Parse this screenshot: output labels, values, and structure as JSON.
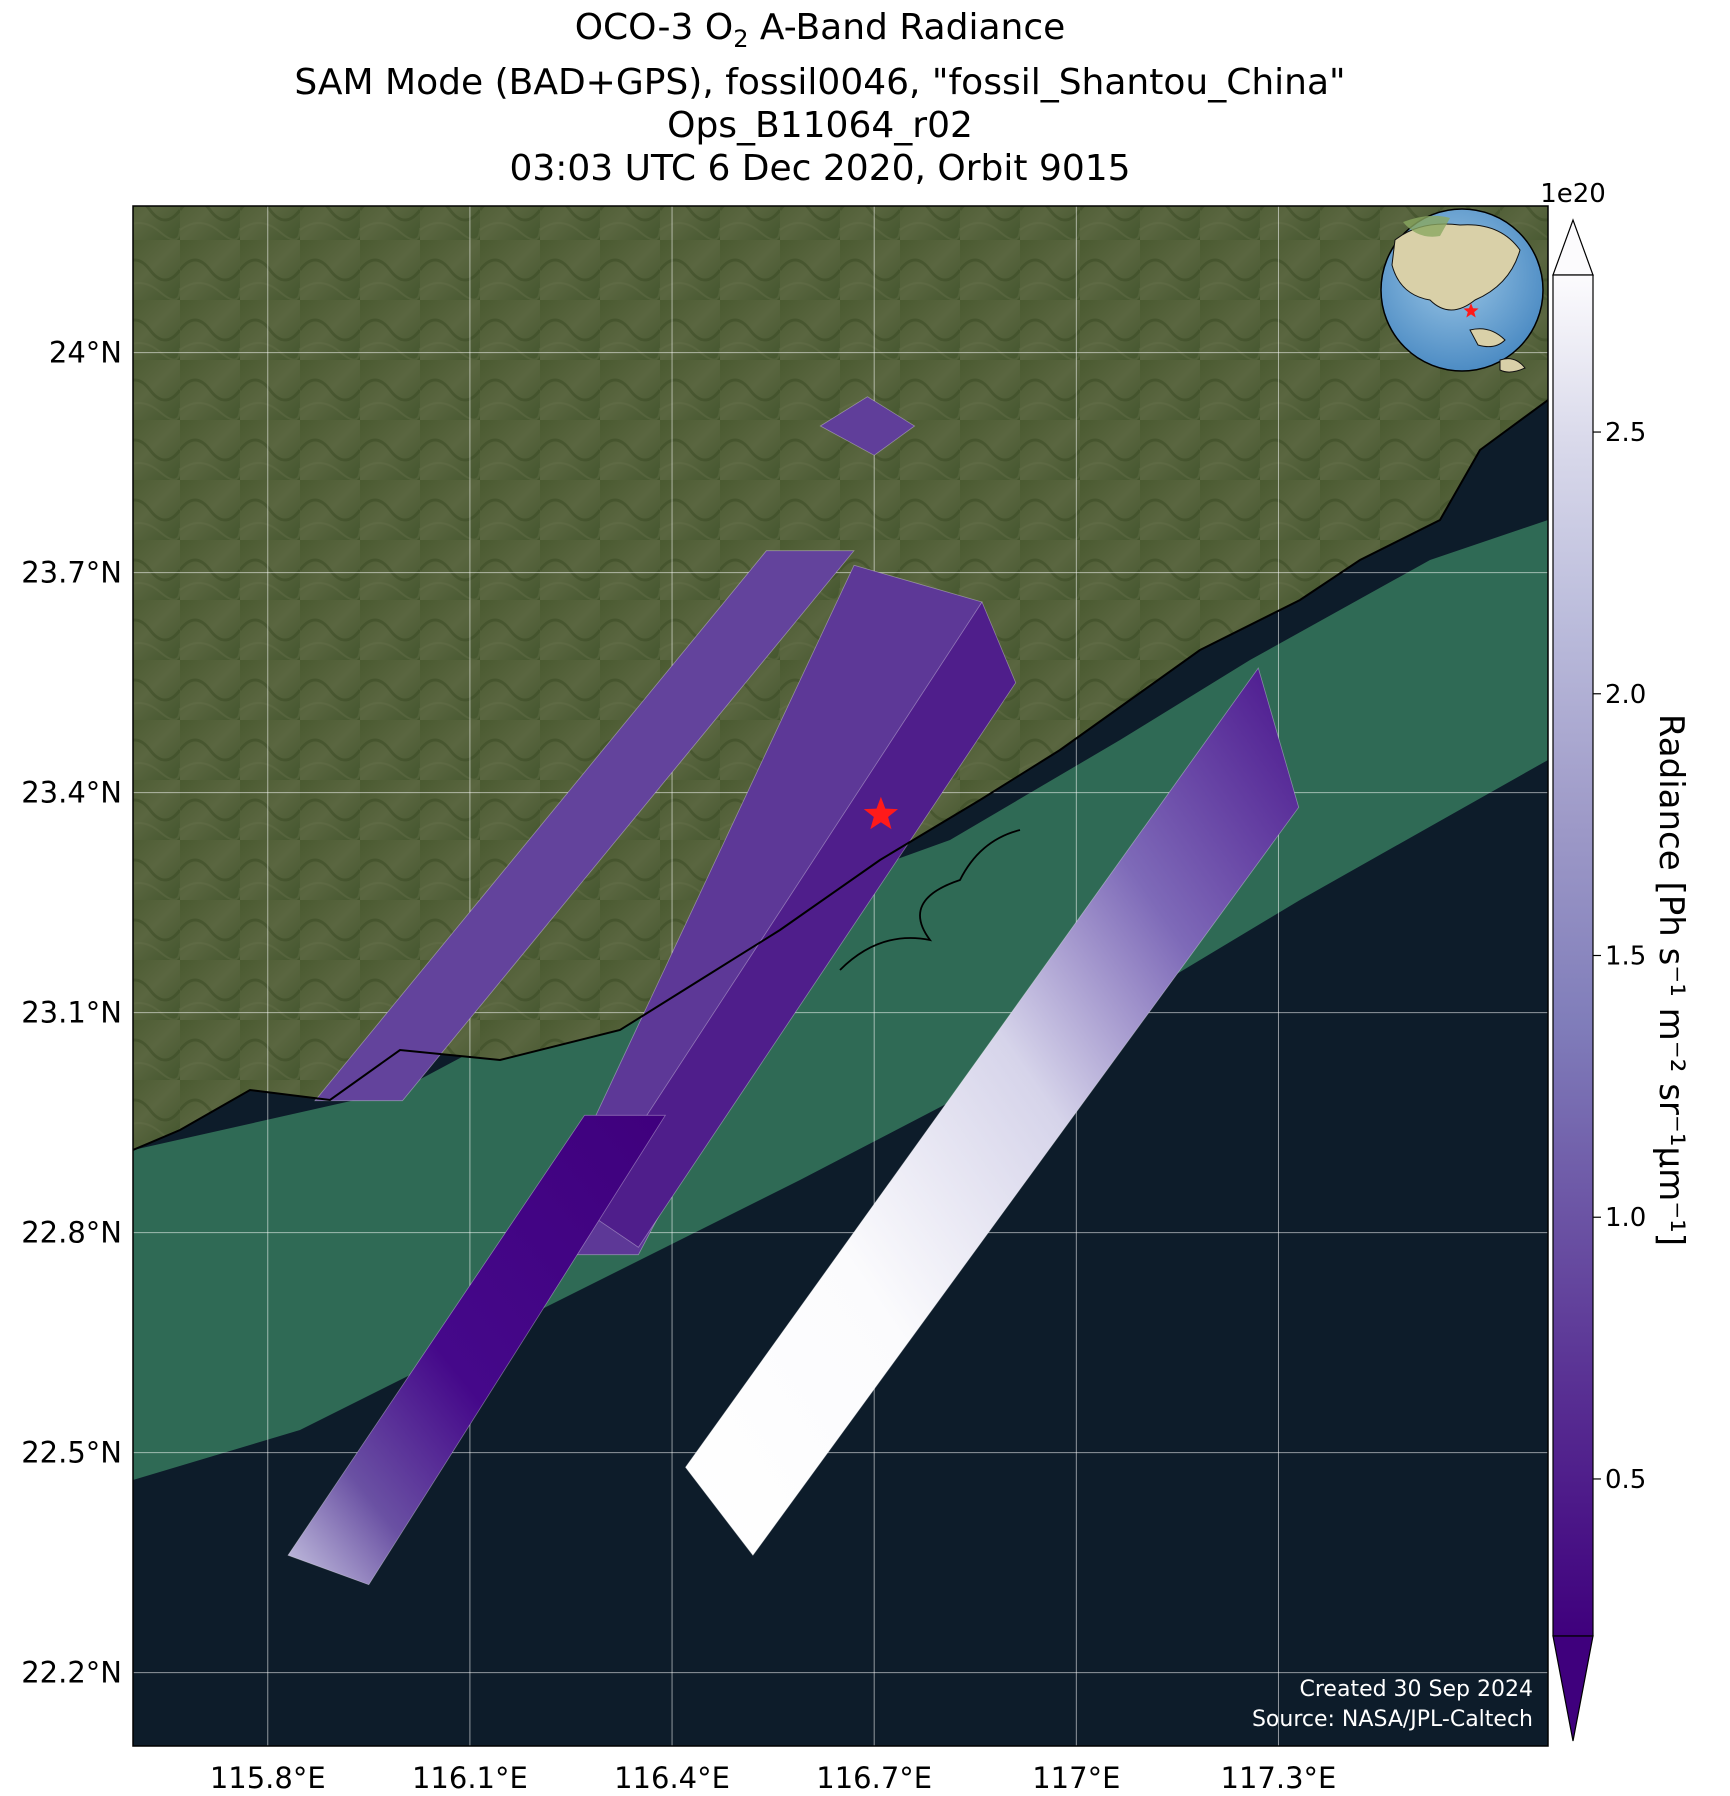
{
  "title": {
    "line1_pre": "OCO-3 O",
    "line1_sub": "2",
    "line1_post": " A-Band Radiance",
    "line2": "SAM Mode (BAD+GPS), fossil0046, \"fossil_Shantou_China\"",
    "line3": "Ops_B11064_r02",
    "line4": "03:03 UTC 6 Dec 2020, Orbit 9015"
  },
  "map": {
    "lon_range": [
      115.6,
      117.7
    ],
    "lat_range": [
      22.1,
      24.2
    ],
    "lon_ticks": [
      {
        "value": 115.8,
        "label": "115.8°E"
      },
      {
        "value": 116.1,
        "label": "116.1°E"
      },
      {
        "value": 116.4,
        "label": "116.4°E"
      },
      {
        "value": 116.7,
        "label": "116.7°E"
      },
      {
        "value": 117.0,
        "label": "117°E"
      },
      {
        "value": 117.3,
        "label": "117.3°E"
      }
    ],
    "lat_ticks": [
      {
        "value": 24.0,
        "label": "24°N"
      },
      {
        "value": 23.7,
        "label": "23.7°N"
      },
      {
        "value": 23.4,
        "label": "23.4°N"
      },
      {
        "value": 23.1,
        "label": "23.1°N"
      },
      {
        "value": 22.8,
        "label": "22.8°N"
      },
      {
        "value": 22.5,
        "label": "22.5°N"
      },
      {
        "value": 22.2,
        "label": "22.2°N"
      }
    ],
    "target": {
      "lon": 116.71,
      "lat": 23.37,
      "color": "#ff1a1a"
    },
    "land_color": "#4c5a30",
    "ocean_color": "#0d1c2a",
    "coast_water_color": "#2f6a55",
    "gridlines": true
  },
  "colorbar": {
    "label": "Radiance [Ph s⁻¹ m⁻² sr⁻¹µm⁻¹]",
    "exponent": "1e20",
    "range": [
      0.2,
      2.8
    ],
    "ticks": [
      {
        "value": 0.5,
        "label": "0.5"
      },
      {
        "value": 1.0,
        "label": "1.0"
      },
      {
        "value": 1.5,
        "label": "1.5"
      },
      {
        "value": 2.0,
        "label": "2.0"
      },
      {
        "value": 2.5,
        "label": "2.5"
      }
    ],
    "colormap": "Purples_r",
    "extend": "both"
  },
  "swaths": [
    {
      "name": "small-north-patch",
      "corners": [
        [
          116.69,
          23.94
        ],
        [
          116.76,
          23.9
        ],
        [
          116.7,
          23.86
        ],
        [
          116.62,
          23.9
        ]
      ],
      "value": 0.8
    },
    {
      "name": "land-swath-west",
      "corners": [
        [
          116.54,
          23.73
        ],
        [
          116.67,
          23.73
        ],
        [
          116.0,
          22.98
        ],
        [
          115.87,
          22.98
        ]
      ],
      "value": 0.85
    },
    {
      "name": "land-swath-mid",
      "corners": [
        [
          116.67,
          23.71
        ],
        [
          116.86,
          23.66
        ],
        [
          116.35,
          22.77
        ],
        [
          116.19,
          22.77
        ]
      ],
      "value": 0.75
    },
    {
      "name": "land-swath-east",
      "corners": [
        [
          116.86,
          23.66
        ],
        [
          116.91,
          23.55
        ],
        [
          116.35,
          22.78
        ],
        [
          116.27,
          22.83
        ]
      ],
      "value": 0.5
    },
    {
      "name": "long-swath-west",
      "corners": [
        [
          116.27,
          22.96
        ],
        [
          116.39,
          22.96
        ],
        [
          115.95,
          22.32
        ],
        [
          115.83,
          22.36
        ]
      ],
      "value": 0.45
    },
    {
      "name": "ocean-swath-east",
      "corners": [
        [
          117.27,
          23.57
        ],
        [
          117.33,
          23.38
        ],
        [
          116.52,
          22.36
        ],
        [
          116.42,
          22.48
        ]
      ],
      "value": 1.9
    }
  ],
  "credits": {
    "line1": "Created 30 Sep 2024",
    "line2": "Source: NASA/JPL-Caltech"
  }
}
